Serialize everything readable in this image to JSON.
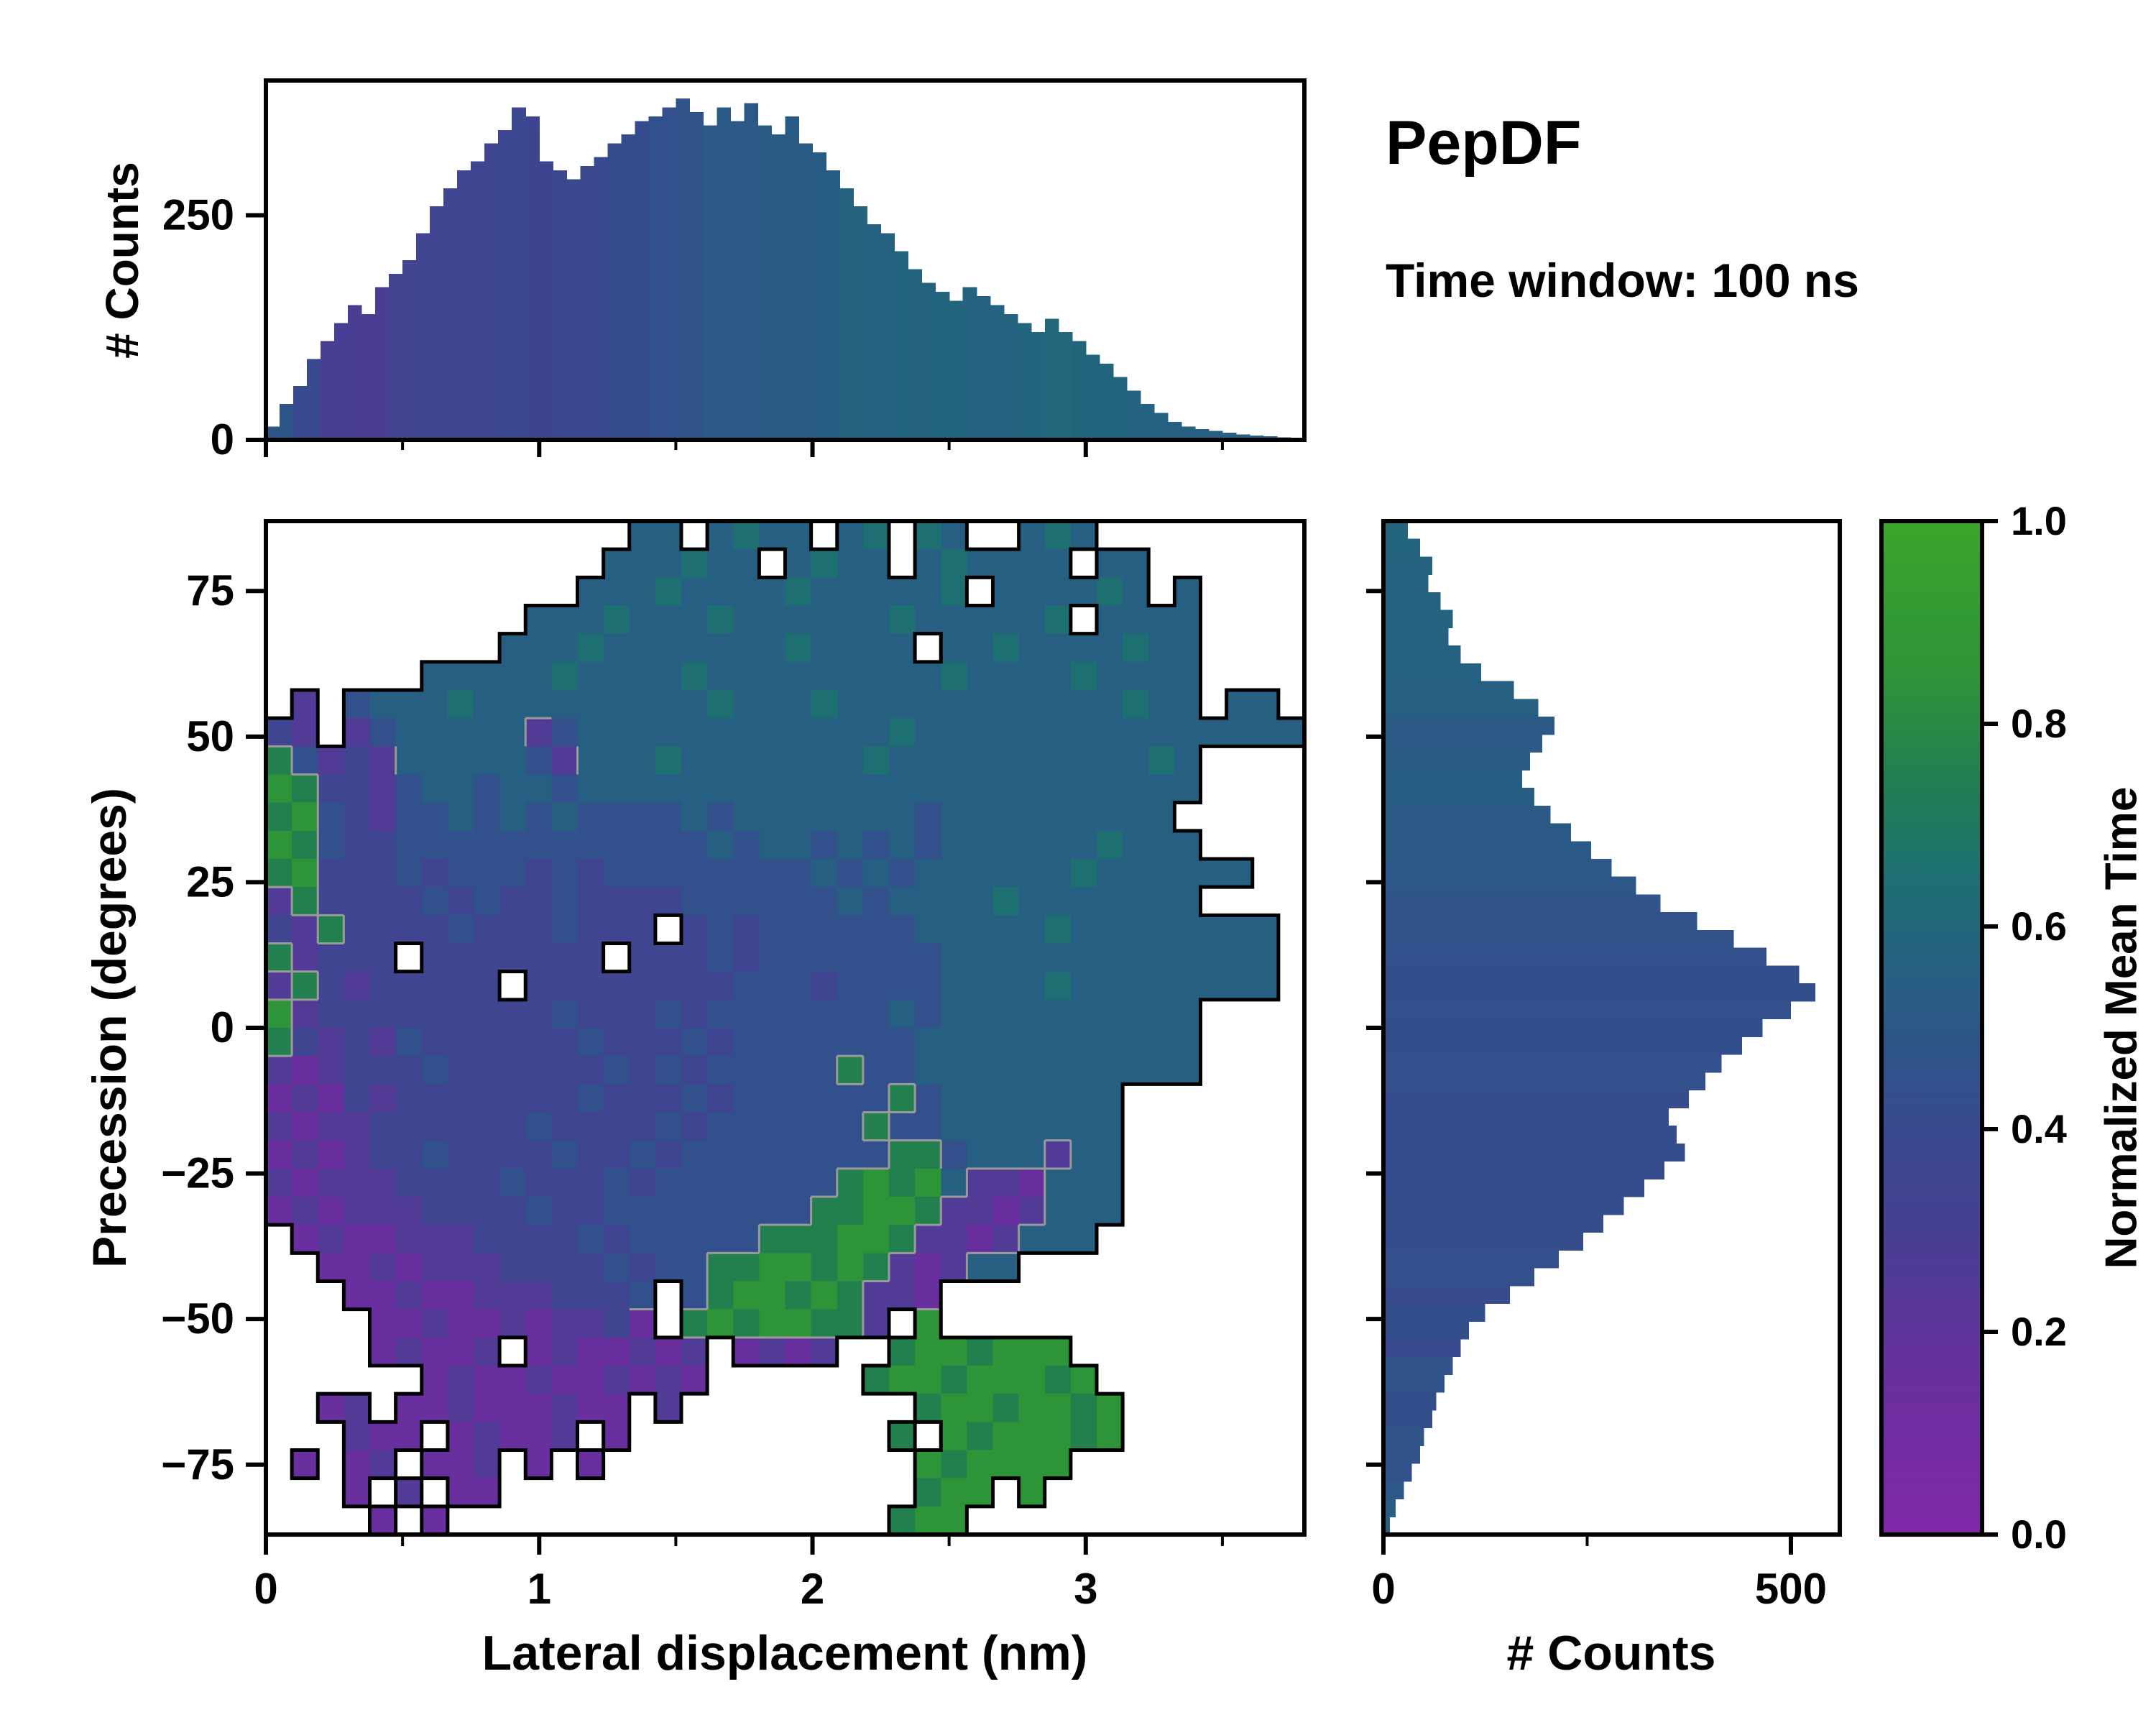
{
  "header": {
    "title": "PepDF",
    "subtitle": "Time window: 100 ns"
  },
  "chart_data": {
    "type": "heatmap",
    "title": "PepDF",
    "annotation": "Time window: 100 ns",
    "heatmap": {
      "xlabel": "Lateral displacement (nm)",
      "ylabel": "Precession (degrees)",
      "xlim": [
        0,
        3.8
      ],
      "ylim": [
        -87,
        87
      ],
      "x_ticks": [
        [
          0,
          "0"
        ],
        [
          1,
          "1"
        ],
        [
          2,
          "2"
        ],
        [
          3,
          "3"
        ]
      ],
      "x_minor_ticks": [
        0.5,
        1.5,
        2.5,
        3.5
      ],
      "y_ticks": [
        [
          75,
          "75"
        ],
        [
          50,
          "50"
        ],
        [
          25,
          "25"
        ],
        [
          0,
          "0"
        ],
        [
          -25,
          "−25"
        ],
        [
          -50,
          "−50"
        ],
        [
          -75,
          "−75"
        ]
      ],
      "grid_cols": 40,
      "grid_rows": 36,
      "cell_encoding": "rows listed top (y=+87) to bottom (y=-87); each char one cell: '.'=empty, digit d => normalized mean time (d+0.5)/10",
      "rows": [
        "..............55.5655.56.65..565........",
        ".............555655.5655.565555.55......",
        "............555655556555556.555565.5....",
        "..........555655565555556555556.5555....",
        ".........5556555555565555.5565555655....",
        "......555556555565555555556555565555....",
        ".2.455565555555556555655555555555655.55.",
        "32.2455555245555555555556555555555555555",
        "742325555542555655555556555555555565....",
        "873324554554555555555555555555555555....",
        "78432445454544445455555554555555555.....",
        "874334444444444445455454545555556555....",
        "78333434443434444444454545555556555555..",
        "273333434334333344444454555565555555....",
        "327333343334333.34344444455555655555555.",
        "72333.3333333.3334344444445555555555555.",
        "273233333.33333333444344445555655555555.",
        "823333333334333434444444545555555555....",
        "732324333333433343444444455555555555....",
        "212333433333343434444474455555555555....",
        "121323333333433343444444745555555.......",
        "212233333343333434444447445555555.......",
        "121233433334334344444444774555255.......",
        "212223333433343444444478785221555.......",
        "121222333343344444444778872212555.......",
        ".1211222333343444447778872212555........",
        "..112122233334344778878721255...........",
        "...112112223334.4788787221..............",
        "....11211212231.78788772.8..............",
        "....12112.1211212.1212..7887888.........",
        "......12112112121......788788878........",
        "..12.112111211.2.........78878878.......",
        "...211.12112.1..........7.8788878.......",
        ".1.12.112.1.1............878888.........",
        "...1.2.11................788.8..........",
        "....1.1.................788.............."
      ]
    },
    "top_histogram": {
      "ylabel": "# Counts",
      "ylim": [
        0,
        400
      ],
      "y_ticks": [
        [
          0,
          "0"
        ],
        [
          250,
          "250"
        ]
      ],
      "x_start": 0,
      "dx": 0.05,
      "values": [
        15,
        40,
        60,
        90,
        110,
        130,
        150,
        140,
        170,
        185,
        200,
        230,
        260,
        280,
        300,
        310,
        330,
        345,
        370,
        360,
        310,
        300,
        290,
        305,
        315,
        330,
        340,
        355,
        360,
        370,
        380,
        365,
        350,
        370,
        355,
        375,
        350,
        340,
        360,
        330,
        320,
        300,
        280,
        260,
        240,
        230,
        210,
        190,
        175,
        165,
        155,
        170,
        160,
        150,
        140,
        130,
        120,
        135,
        120,
        110,
        95,
        85,
        70,
        55,
        40,
        30,
        20,
        15,
        12,
        10,
        8,
        6,
        5,
        4,
        3,
        2
      ]
    },
    "right_histogram": {
      "xlabel": "# Counts",
      "xlim": [
        0,
        560
      ],
      "x_ticks": [
        [
          0,
          "0"
        ],
        [
          500,
          "500"
        ]
      ],
      "x_minor_ticks": [
        250
      ],
      "y_start": 87,
      "dy": -3.05,
      "values": [
        30,
        45,
        60,
        55,
        70,
        85,
        80,
        95,
        120,
        160,
        190,
        210,
        195,
        180,
        170,
        185,
        205,
        230,
        255,
        280,
        310,
        340,
        385,
        430,
        470,
        510,
        530,
        500,
        465,
        440,
        415,
        395,
        375,
        350,
        360,
        370,
        345,
        320,
        295,
        270,
        245,
        215,
        185,
        155,
        125,
        105,
        95,
        85,
        75,
        65,
        60,
        50,
        45,
        35,
        25,
        15,
        8
      ]
    },
    "colorbar": {
      "label": "Normalized Mean Time",
      "range": [
        0,
        1
      ],
      "ticks": [
        [
          0,
          "0.0"
        ],
        [
          0.2,
          "0.2"
        ],
        [
          0.4,
          "0.4"
        ],
        [
          0.6,
          "0.6"
        ],
        [
          0.8,
          "0.8"
        ],
        [
          1,
          "1.0"
        ]
      ],
      "stops": [
        [
          0,
          "#8028a8"
        ],
        [
          0.15,
          "#6a2f9e"
        ],
        [
          0.3,
          "#463f93"
        ],
        [
          0.45,
          "#32508b"
        ],
        [
          0.55,
          "#265f82"
        ],
        [
          0.65,
          "#1d6f72"
        ],
        [
          0.75,
          "#22804f"
        ],
        [
          0.85,
          "#2e9438"
        ],
        [
          1,
          "#3aa52b"
        ]
      ]
    }
  }
}
